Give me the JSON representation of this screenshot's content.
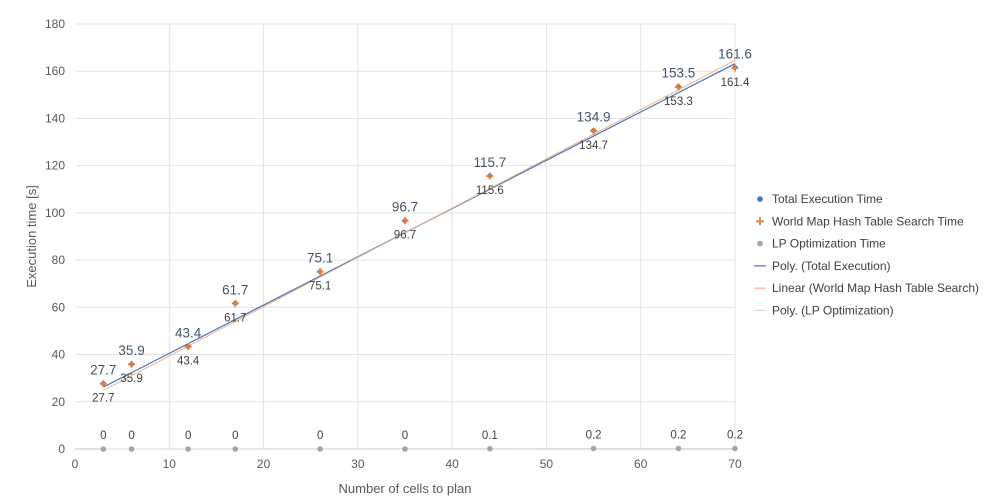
{
  "chart_data": {
    "type": "scatter",
    "title": "",
    "xlabel": "Number of cells to plan",
    "ylabel": "Execution time [s]",
    "xlim": [
      0,
      70
    ],
    "ylim": [
      0,
      180
    ],
    "x_ticks": [
      0,
      10,
      20,
      30,
      40,
      50,
      60,
      70
    ],
    "y_ticks": [
      0,
      20,
      40,
      60,
      80,
      100,
      120,
      140,
      160,
      180
    ],
    "grid": true,
    "legend_position": "right",
    "x": [
      3,
      6,
      12,
      17,
      26,
      35,
      44,
      55,
      64,
      70
    ],
    "series": [
      {
        "name": "Total Execution Time",
        "marker": "dot",
        "color": "#4472C4",
        "values": [
          27.7,
          35.9,
          43.4,
          61.7,
          75.1,
          96.7,
          115.7,
          134.9,
          153.5,
          161.6
        ],
        "labels": [
          "27.7",
          "35.9",
          "43.4",
          "61.7",
          "75.1",
          "96.7",
          "115.7",
          "134.9",
          "153.5",
          "161.6"
        ]
      },
      {
        "name": "World Map Hash Table Search Time",
        "marker": "plus",
        "color": "#ED7D31",
        "values": [
          27.7,
          35.9,
          43.4,
          61.7,
          75.1,
          96.7,
          115.6,
          134.7,
          153.3,
          161.4
        ],
        "labels": [
          "27.7",
          "35.9",
          "43.4",
          "61.7",
          "75.1",
          "96.7",
          "115.6",
          "134.7",
          "153.3",
          "161.4"
        ]
      },
      {
        "name": "LP Optimization Time",
        "marker": "dot",
        "color": "#A5A5A5",
        "values": [
          0,
          0,
          0,
          0,
          0,
          0,
          0.1,
          0.2,
          0.2,
          0.2
        ],
        "labels": [
          "0",
          "0",
          "0",
          "0",
          "0",
          "0",
          "0.1",
          "0.2",
          "0.2",
          "0.2"
        ]
      }
    ],
    "trendlines": [
      {
        "name": "Poly. (Total Execution)",
        "color": "#4472C4",
        "type": "polynomial",
        "x_range": [
          3,
          70
        ],
        "y_range": [
          26.2,
          163.2
        ]
      },
      {
        "name": "Linear (World Map Hash Table Search)",
        "color": "#F4B183",
        "type": "linear",
        "x_range": [
          3,
          70
        ],
        "y_range": [
          24.8,
          164.6
        ]
      },
      {
        "name": "Poly. (LP Optimization)",
        "color": "#D9D9D9",
        "type": "polynomial",
        "x_range": [
          3,
          70
        ],
        "y_range": [
          0,
          0.2
        ]
      }
    ]
  }
}
